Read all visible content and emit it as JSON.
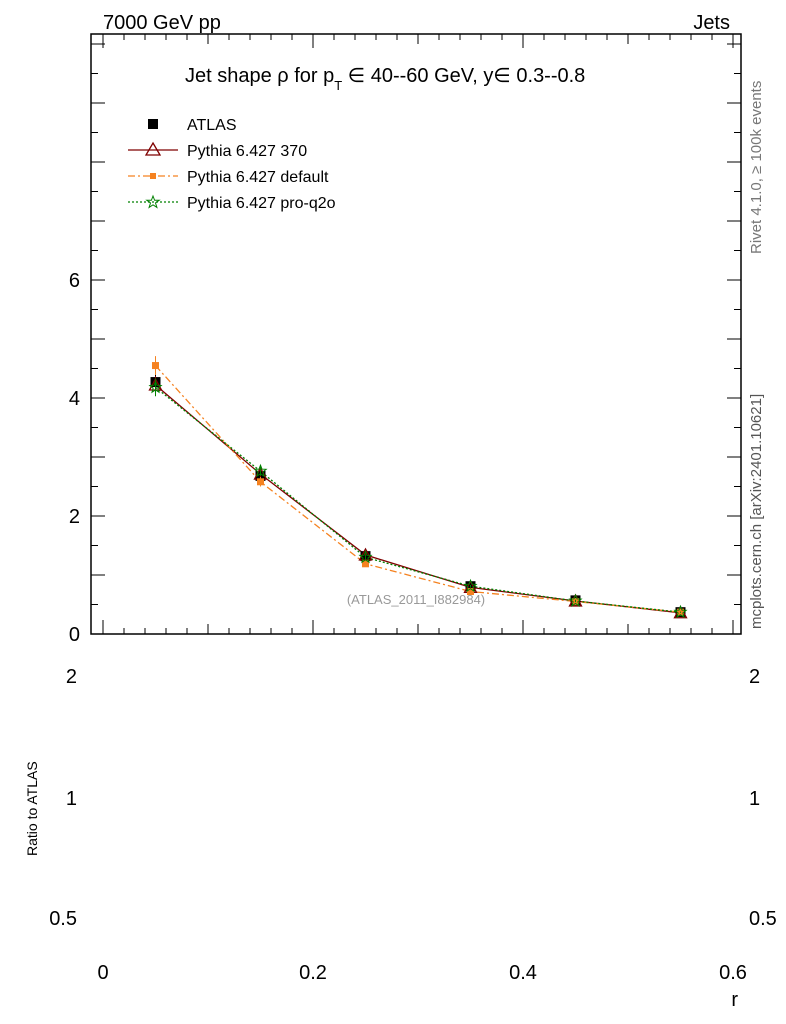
{
  "header": {
    "left": "7000 GeV pp",
    "right": "Jets"
  },
  "side_labels": {
    "rivet": "Rivet 4.1.0, ≥ 100k events",
    "mcplots": "mcplots.cern.ch [arXiv:2401.10621]"
  },
  "watermark": "(ATLAS_2011_I882984)",
  "chart_data": {
    "type": "line",
    "title": "Jet shape ρ for p_T ∈ 40--60 GeV, y∈ 0.3--0.8",
    "title_parts": {
      "lead": "Jet shape ρ for p",
      "sub": "T",
      "tail": " ∈ 40--60 GeV, y∈ 0.3--0.8"
    },
    "xlabel": "r",
    "ylabel": "",
    "xlim": [
      0,
      0.6
    ],
    "ylim": [
      0,
      10
    ],
    "x": [
      0.05,
      0.15,
      0.25,
      0.35,
      0.45,
      0.55
    ],
    "y_ticks": [
      0,
      2,
      4,
      6
    ],
    "x_ticks": [
      0,
      0.2,
      0.4,
      0.6
    ],
    "x_tick_labels": [
      "0",
      "0.2",
      "0.4",
      "0.6"
    ],
    "series": [
      {
        "name": "ATLAS",
        "values": [
          4.27,
          2.68,
          1.32,
          0.81,
          0.57,
          0.37
        ],
        "errors": [
          0.2,
          0.1,
          0.05,
          0.03,
          0.02,
          0.02
        ],
        "color": "#000000",
        "style": "points",
        "marker": "square"
      },
      {
        "name": "Pythia 6.427 370",
        "values": [
          4.22,
          2.71,
          1.34,
          0.79,
          0.56,
          0.36
        ],
        "errors": [
          0.15,
          0.08,
          0.04,
          0.02,
          0.02,
          0.01
        ],
        "color": "#7f0000",
        "style": "solid",
        "marker": "triangle-open"
      },
      {
        "name": "Pythia 6.427 default",
        "values": [
          4.55,
          2.58,
          1.19,
          0.72,
          0.55,
          0.37
        ],
        "errors": [
          0.16,
          0.08,
          0.04,
          0.02,
          0.02,
          0.01
        ],
        "color": "#f58220",
        "style": "dashdot",
        "marker": "square-small"
      },
      {
        "name": "Pythia 6.427 pro-q2o",
        "values": [
          4.18,
          2.76,
          1.3,
          0.81,
          0.56,
          0.37
        ],
        "errors": [
          0.15,
          0.08,
          0.04,
          0.02,
          0.02,
          0.01
        ],
        "color": "#008000",
        "style": "dotted",
        "marker": "star-open"
      }
    ],
    "ratio": {
      "ylabel": "Ratio to ATLAS",
      "tick_labels": [
        "2",
        "1",
        "0.5"
      ]
    }
  }
}
